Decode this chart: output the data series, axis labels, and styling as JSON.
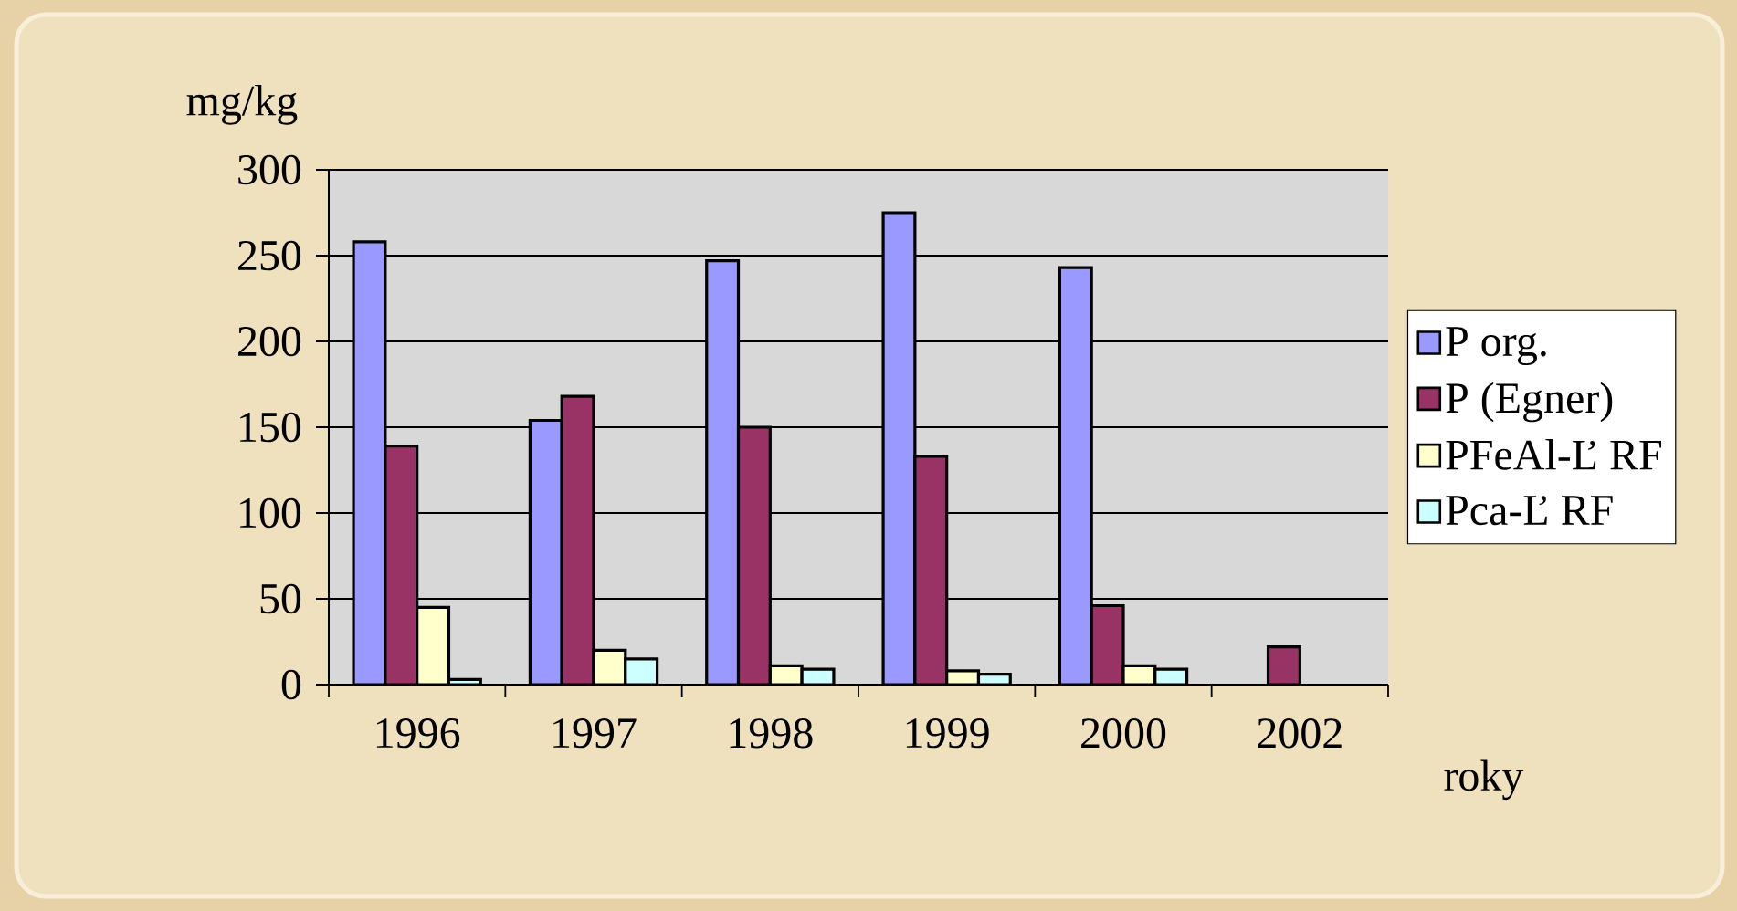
{
  "chart_data": {
    "type": "bar",
    "xlabel": "roky",
    "ylabel": "mg/kg",
    "categories": [
      "1996",
      "1997",
      "1998",
      "1999",
      "2000",
      "2002"
    ],
    "series": [
      {
        "name": "P org.",
        "color": "#9999ff",
        "values": [
          258,
          154,
          247,
          275,
          243,
          null
        ]
      },
      {
        "name": "P (Egner)",
        "color": "#993366",
        "values": [
          139,
          168,
          150,
          133,
          46,
          22
        ]
      },
      {
        "name": "PFeAl-Ľ RF",
        "color": "#ffffcc",
        "values": [
          45,
          20,
          11,
          8,
          11,
          null
        ]
      },
      {
        "name": "Pca-Ľ RF",
        "color": "#ccffff",
        "values": [
          3,
          15,
          9,
          6,
          9,
          null
        ]
      }
    ],
    "ylim": [
      0,
      300
    ],
    "yticks": [
      0,
      50,
      100,
      150,
      200,
      250,
      300
    ],
    "grid": "y",
    "legend": "right"
  }
}
